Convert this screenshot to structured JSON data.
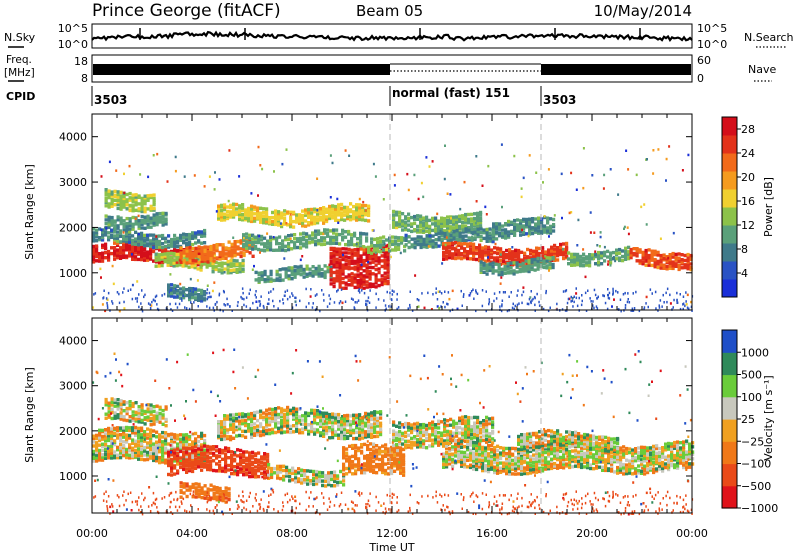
{
  "header": {
    "station": "Prince George (fitACF)",
    "beam": "Beam 05",
    "date": "10/May/2014"
  },
  "panels": {
    "nsky": {
      "left_label": "N.Sky",
      "right_label": "N.Search",
      "tick_top": "10^5",
      "tick_bottom": "10^0"
    },
    "freq": {
      "label_line1": "Freq.",
      "label_line2": "[MHz]",
      "left_ticks": [
        "18",
        "8"
      ],
      "right_ticks": [
        "60",
        "0"
      ],
      "right_label": "Nave"
    },
    "cpid": {
      "label": "CPID",
      "segments": [
        {
          "label": "3503",
          "start_ut": 0
        },
        {
          "label": "normal (fast) 151",
          "start_ut": 12
        },
        {
          "label": "3503",
          "start_ut": 18
        }
      ]
    },
    "power": {
      "ylabel": "Slant Range [km]",
      "yticks": [
        "1000",
        "2000",
        "3000",
        "4000"
      ],
      "colorbar_title": "Power [dB]",
      "colorbar_ticks": [
        "4",
        "8",
        "12",
        "16",
        "20",
        "24",
        "28"
      ]
    },
    "velocity": {
      "ylabel": "Slant Range [km]",
      "yticks": [
        "1000",
        "2000",
        "3000",
        "4000"
      ],
      "colorbar_title": "Velocity [m s⁻¹]",
      "colorbar_ticks": [
        "1000",
        "500",
        "100",
        "25",
        "−25",
        "−100",
        "−500",
        "−1000"
      ]
    }
  },
  "xaxis": {
    "label": "Time UT",
    "ticks": [
      "00:00",
      "04:00",
      "08:00",
      "12:00",
      "16:00",
      "20:00",
      "00:00"
    ]
  },
  "colors": {
    "power_scale": [
      "#1a2fd8",
      "#2a53c4",
      "#3f7a8a",
      "#5aa07a",
      "#8cc24a",
      "#f0d030",
      "#f59b1e",
      "#f26a1a",
      "#e3321a",
      "#d40e1a"
    ],
    "velocity_scale": [
      "#1f4fc8",
      "#2f8a5a",
      "#6acc3a",
      "#c8c8bd",
      "#f0a020",
      "#f07818",
      "#ea4a18",
      "#e0121a"
    ],
    "ground_scatter": "#c8c8bd"
  },
  "chart_data": [
    {
      "type": "heatmap",
      "title": "Power",
      "xlabel": "Time UT",
      "ylabel": "Slant Range [km]",
      "xlim": [
        0,
        24
      ],
      "ylim": [
        180,
        4500
      ],
      "zlim": [
        0,
        30
      ],
      "zlabel": "Power [dB]",
      "bands": [
        {
          "t_start": 0.0,
          "t_end": 4.8,
          "r_center": 1450,
          "width": 170,
          "value": 27
        },
        {
          "t_start": 0.0,
          "t_end": 4.5,
          "r_center": 1800,
          "width": 120,
          "value": 9
        },
        {
          "t_start": 0.5,
          "t_end": 2.5,
          "r_center": 2650,
          "width": 170,
          "value": 14
        },
        {
          "t_start": 0.5,
          "t_end": 3.0,
          "r_center": 2200,
          "width": 120,
          "value": 10
        },
        {
          "t_start": 2.5,
          "t_end": 6.0,
          "r_center": 1250,
          "width": 120,
          "value": 14
        },
        {
          "t_start": 3.0,
          "t_end": 4.5,
          "r_center": 620,
          "width": 120,
          "value": 8
        },
        {
          "t_start": 3.5,
          "t_end": 6.5,
          "r_center": 1500,
          "width": 160,
          "value": 22
        },
        {
          "t_start": 5.0,
          "t_end": 11.0,
          "r_center": 2300,
          "width": 160,
          "value": 16
        },
        {
          "t_start": 6.0,
          "t_end": 11.0,
          "r_center": 1750,
          "width": 140,
          "value": 11
        },
        {
          "t_start": 6.5,
          "t_end": 9.5,
          "r_center": 1000,
          "width": 110,
          "value": 10
        },
        {
          "t_start": 9.5,
          "t_end": 11.8,
          "r_center": 1200,
          "width": 420,
          "value": 27
        },
        {
          "t_start": 11.0,
          "t_end": 12.5,
          "r_center": 1600,
          "width": 140,
          "value": 12
        },
        {
          "t_start": 12.0,
          "t_end": 15.5,
          "r_center": 2150,
          "width": 170,
          "value": 12
        },
        {
          "t_start": 12.5,
          "t_end": 16.0,
          "r_center": 1800,
          "width": 120,
          "value": 9
        },
        {
          "t_start": 14.0,
          "t_end": 19.0,
          "r_center": 1450,
          "width": 160,
          "value": 25
        },
        {
          "t_start": 15.5,
          "t_end": 18.5,
          "r_center": 1200,
          "width": 110,
          "value": 10
        },
        {
          "t_start": 16.0,
          "t_end": 18.5,
          "r_center": 2000,
          "width": 160,
          "value": 9
        },
        {
          "t_start": 19.0,
          "t_end": 21.5,
          "r_center": 1400,
          "width": 120,
          "value": 11
        },
        {
          "t_start": 21.5,
          "t_end": 24.0,
          "r_center": 1350,
          "width": 160,
          "value": 24
        }
      ]
    },
    {
      "type": "heatmap",
      "title": "Velocity",
      "xlabel": "Time UT",
      "ylabel": "Slant Range [km]",
      "xlim": [
        0,
        24
      ],
      "ylim": [
        180,
        4500
      ],
      "zlim": [
        -1000,
        1000
      ],
      "zlabel": "Velocity [m s⁻¹]",
      "bands": [
        {
          "t_start": 0.0,
          "t_end": 4.5,
          "r_center": 1700,
          "width": 330,
          "value": 0
        },
        {
          "t_start": 0.5,
          "t_end": 3.0,
          "r_center": 2450,
          "width": 200,
          "value": 0
        },
        {
          "t_start": 3.0,
          "t_end": 7.0,
          "r_center": 1350,
          "width": 260,
          "value": -700
        },
        {
          "t_start": 3.5,
          "t_end": 5.5,
          "r_center": 650,
          "width": 140,
          "value": -400
        },
        {
          "t_start": 5.0,
          "t_end": 11.5,
          "r_center": 2200,
          "width": 260,
          "value": 0
        },
        {
          "t_start": 7.0,
          "t_end": 10.0,
          "r_center": 1050,
          "width": 140,
          "value": 0
        },
        {
          "t_start": 10.0,
          "t_end": 12.5,
          "r_center": 1350,
          "width": 300,
          "value": -200
        },
        {
          "t_start": 12.0,
          "t_end": 16.0,
          "r_center": 2000,
          "width": 260,
          "value": 0
        },
        {
          "t_start": 14.0,
          "t_end": 24.0,
          "r_center": 1450,
          "width": 280,
          "value": 0
        },
        {
          "t_start": 17.0,
          "t_end": 21.0,
          "r_center": 1800,
          "width": 150,
          "value": 0
        }
      ]
    }
  ]
}
